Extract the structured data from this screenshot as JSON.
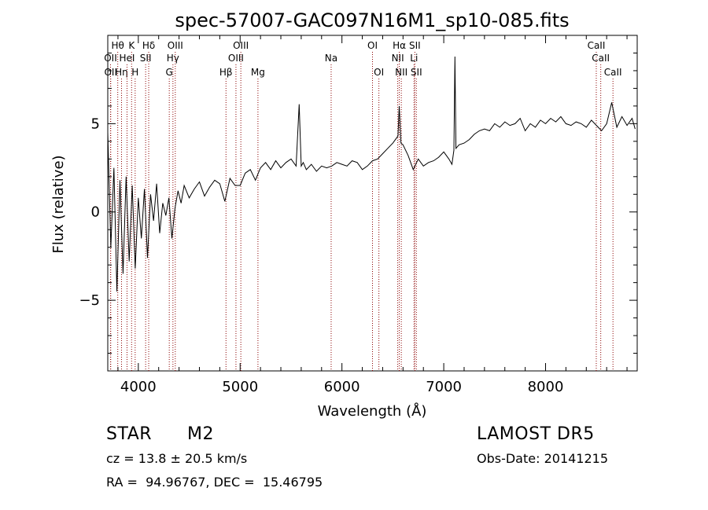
{
  "chart_data": {
    "type": "line",
    "title": "spec-57007-GAC097N16M1_sp10-085.fits",
    "xlabel": "Wavelength (Å)",
    "ylabel": "Flux (relative)",
    "xlim": [
      3700,
      8900
    ],
    "ylim": [
      -9,
      10
    ],
    "xticks": [
      4000,
      5000,
      6000,
      7000,
      8000
    ],
    "yticks": [
      -5,
      0,
      5
    ],
    "grid": false,
    "legend": "none",
    "line_color": "#000000",
    "marker_color": "#8b0000",
    "spectrum": {
      "x": [
        3700,
        3730,
        3760,
        3790,
        3820,
        3850,
        3880,
        3910,
        3940,
        3970,
        4000,
        4030,
        4060,
        4090,
        4120,
        4150,
        4180,
        4210,
        4240,
        4270,
        4300,
        4330,
        4360,
        4390,
        4420,
        4450,
        4500,
        4550,
        4600,
        4650,
        4700,
        4750,
        4800,
        4850,
        4900,
        4950,
        5000,
        5050,
        5100,
        5150,
        5200,
        5250,
        5300,
        5350,
        5400,
        5450,
        5500,
        5550,
        5580,
        5600,
        5620,
        5650,
        5700,
        5750,
        5800,
        5850,
        5900,
        5950,
        6000,
        6050,
        6100,
        6150,
        6200,
        6250,
        6300,
        6350,
        6400,
        6450,
        6500,
        6550,
        6563,
        6580,
        6600,
        6650,
        6700,
        6750,
        6800,
        6850,
        6900,
        6950,
        7000,
        7050,
        7080,
        7100,
        7110,
        7120,
        7150,
        7200,
        7250,
        7300,
        7350,
        7400,
        7450,
        7500,
        7550,
        7600,
        7650,
        7700,
        7750,
        7800,
        7850,
        7900,
        7950,
        8000,
        8050,
        8100,
        8150,
        8200,
        8250,
        8300,
        8350,
        8400,
        8450,
        8500,
        8550,
        8600,
        8650,
        8700,
        8750,
        8800,
        8850,
        8880
      ],
      "y": [
        4.5,
        -2,
        2.5,
        -4.5,
        1.8,
        -3.5,
        2,
        -2.8,
        1.5,
        -3.2,
        0.8,
        -1.5,
        1.3,
        -2.6,
        1,
        -0.5,
        1.6,
        -1.2,
        0.5,
        -0.2,
        0.8,
        -1.5,
        0.2,
        1.2,
        0.5,
        1.5,
        0.8,
        1.3,
        1.7,
        0.9,
        1.4,
        1.8,
        1.6,
        0.6,
        1.9,
        1.5,
        1.5,
        2.2,
        2.4,
        1.8,
        2.5,
        2.8,
        2.4,
        2.9,
        2.5,
        2.8,
        3,
        2.6,
        6.1,
        2.6,
        2.8,
        2.4,
        2.7,
        2.3,
        2.6,
        2.5,
        2.6,
        2.8,
        2.7,
        2.6,
        2.9,
        2.8,
        2.4,
        2.6,
        2.9,
        3.0,
        3.3,
        3.6,
        3.9,
        4.3,
        6,
        3.9,
        3.8,
        3.2,
        2.4,
        3.0,
        2.6,
        2.8,
        2.9,
        3.1,
        3.4,
        3.0,
        2.7,
        3.5,
        8.8,
        3.6,
        3.8,
        3.9,
        4.1,
        4.4,
        4.6,
        4.7,
        4.6,
        5.0,
        4.8,
        5.1,
        4.9,
        5.0,
        5.3,
        4.6,
        5.0,
        4.8,
        5.2,
        5.0,
        5.3,
        5.1,
        5.4,
        5.0,
        4.9,
        5.1,
        5.0,
        4.8,
        5.2,
        4.9,
        4.6,
        5.0,
        6.2,
        4.8,
        5.4,
        4.9,
        5.3,
        4.7
      ]
    },
    "line_markers": [
      {
        "label": "Hθ",
        "x": 3798,
        "row": 1
      },
      {
        "label": "OII",
        "x": 3727,
        "row": 2
      },
      {
        "label": "OII",
        "x": 3729,
        "row": 3
      },
      {
        "label": "Hη",
        "x": 3835,
        "row": 3
      },
      {
        "label": "HeI",
        "x": 3889,
        "row": 2
      },
      {
        "label": "K",
        "x": 3934,
        "row": 1
      },
      {
        "label": "H",
        "x": 3969,
        "row": 3
      },
      {
        "label": "Hδ",
        "x": 4102,
        "row": 1
      },
      {
        "label": "SII",
        "x": 4072,
        "row": 2
      },
      {
        "label": "Hγ",
        "x": 4340,
        "row": 2
      },
      {
        "label": "G",
        "x": 4304,
        "row": 3
      },
      {
        "label": "OIII",
        "x": 4363,
        "row": 1
      },
      {
        "label": "Hβ",
        "x": 4861,
        "row": 3
      },
      {
        "label": "OIII",
        "x": 4959,
        "row": 2
      },
      {
        "label": "OIII",
        "x": 5007,
        "row": 1
      },
      {
        "label": "Mg",
        "x": 5175,
        "row": 3
      },
      {
        "label": "Na",
        "x": 5894,
        "row": 2
      },
      {
        "label": "OI",
        "x": 6300,
        "row": 1
      },
      {
        "label": "OI",
        "x": 6363,
        "row": 3
      },
      {
        "label": "NII",
        "x": 6548,
        "row": 2
      },
      {
        "label": "Hα",
        "x": 6563,
        "row": 1
      },
      {
        "label": "NII",
        "x": 6583,
        "row": 3
      },
      {
        "label": "SII",
        "x": 6716,
        "row": 1
      },
      {
        "label": "Li",
        "x": 6708,
        "row": 2
      },
      {
        "label": "SII",
        "x": 6731,
        "row": 3
      },
      {
        "label": "CaII",
        "x": 8498,
        "row": 1
      },
      {
        "label": "CaII",
        "x": 8542,
        "row": 2
      },
      {
        "label": "CaII",
        "x": 8662,
        "row": 3
      }
    ]
  },
  "info": {
    "class_label": "STAR",
    "subclass": "M2",
    "survey": "LAMOST DR5",
    "redshift": "cz = 13.8 ± 20.5 km/s",
    "obs_date": "Obs-Date: 20141215",
    "coords": "RA =  94.96767, DEC =  15.46795"
  }
}
